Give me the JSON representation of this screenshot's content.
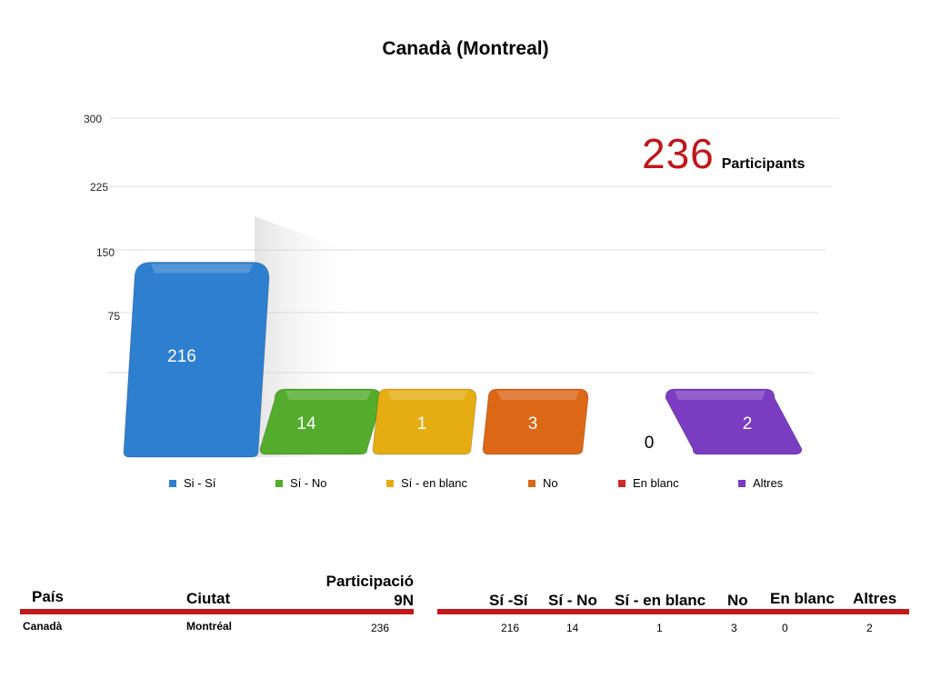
{
  "chart_data": {
    "type": "bar",
    "title": "Canadà (Montreal)",
    "categories": [
      "Si - Sí",
      "Sí - No",
      "Sí - en blanc",
      "No",
      "En blanc",
      "Altres"
    ],
    "values": [
      216,
      14,
      1,
      3,
      0,
      2
    ],
    "value_labels": [
      "216",
      "14",
      "1",
      "3",
      "0",
      "2"
    ],
    "colors": [
      "#2f7fd0",
      "#53ac2c",
      "#e5ad12",
      "#dc6716",
      "#cf2a28",
      "#7a3cc0"
    ],
    "yticks": [
      "75",
      "150",
      "225",
      "300"
    ],
    "ylim": [
      0,
      300
    ],
    "grid": true,
    "legend_position": "bottom"
  },
  "annotation": {
    "number": "236",
    "label": "Participants"
  },
  "table": {
    "headers": {
      "country": "País",
      "city": "Ciutat",
      "participation_line1": "Participació",
      "participation_line2": "9N",
      "si_si": "Sí -Sí",
      "si_no": "Sí - No",
      "si_blank": "Sí - en blanc",
      "no": "No",
      "blank": "En blanc",
      "other": "Altres"
    },
    "row": {
      "country": "Canadà",
      "city": "Montréal",
      "participation": "236",
      "si_si": "216",
      "si_no": "14",
      "si_blank": "1",
      "no": "3",
      "blank": "0",
      "other": "2"
    },
    "line_color": "#c0191c"
  }
}
